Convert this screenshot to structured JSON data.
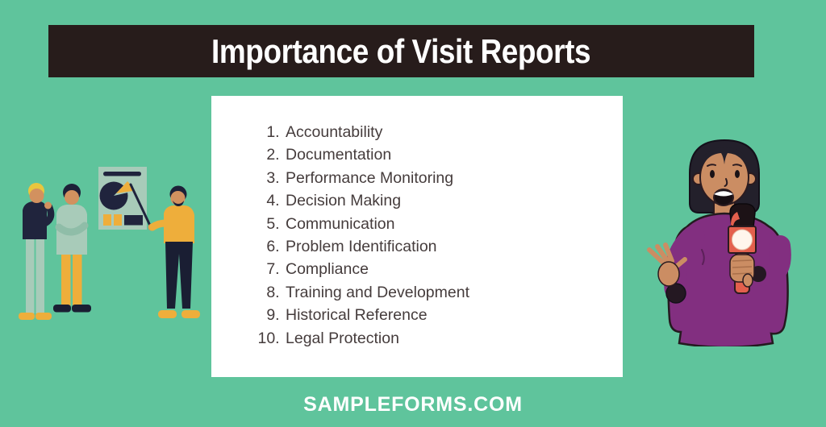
{
  "header": {
    "title": "Importance of Visit Reports"
  },
  "list": {
    "items": [
      "Accountability",
      "Documentation",
      "Performance Monitoring",
      "Decision Making",
      "Communication",
      "Problem Identification",
      "Compliance",
      "Training and Development",
      "Historical Reference",
      "Legal Protection"
    ]
  },
  "footer": {
    "site": "SAMPLEFORMS.COM"
  },
  "illustrations": {
    "left_alt": "Team of three people presenting a pie chart poster with a pointer",
    "right_alt": "News reporter in purple blouse speaking into a red microphone"
  },
  "colors": {
    "background": "#5fc49c",
    "header_bar": "#271c1b",
    "card": "#ffffff",
    "title_text": "#ffffff",
    "list_text": "#453c3c",
    "accent_navy": "#20243d",
    "accent_yellow": "#eeae3b",
    "accent_sage": "#a8cbb9",
    "accent_purple": "#822f80",
    "accent_salmon": "#e3604d",
    "skin_tone": "#cb8d63"
  }
}
